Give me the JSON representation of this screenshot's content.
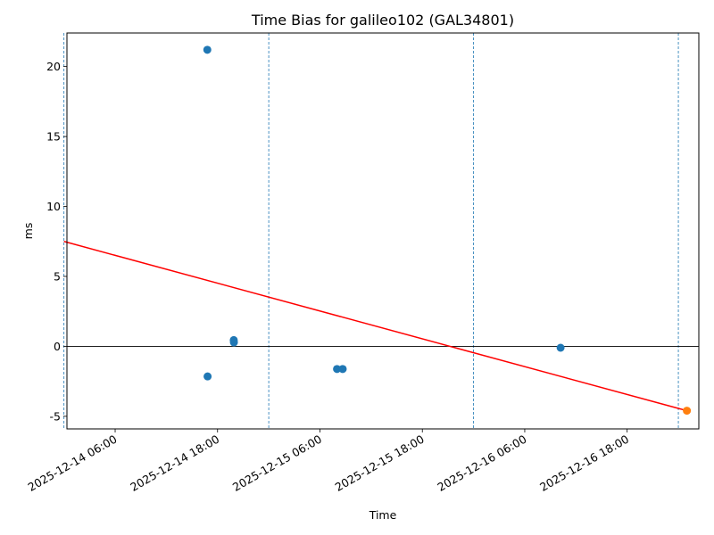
{
  "chart_data": {
    "type": "scatter",
    "title": "Time Bias for galileo102 (GAL34801)",
    "xlabel": "Time",
    "ylabel": "ms",
    "xlim": [
      "2025-12-14 00:21",
      "2025-12-17 02:24"
    ],
    "ylim": [
      -5.9,
      22.4
    ],
    "x_ticks": [
      "2025-12-14 06:00",
      "2025-12-14 18:00",
      "2025-12-15 06:00",
      "2025-12-15 18:00",
      "2025-12-16 06:00",
      "2025-12-16 18:00"
    ],
    "y_ticks": [
      -5,
      0,
      5,
      10,
      15,
      20
    ],
    "grid": false,
    "zero_line": true,
    "colors": {
      "points": "#1f77b4",
      "predicted_point": "#ff7f0e",
      "trend": "#ff0000",
      "vlines": "#1f77b4",
      "zero_line": "#000000"
    },
    "points": [
      {
        "x": "2025-12-14 16:48",
        "y": 21.2
      },
      {
        "x": "2025-12-14 16:50",
        "y": -2.15
      },
      {
        "x": "2025-12-14 19:54",
        "y": 0.45
      },
      {
        "x": "2025-12-14 19:55",
        "y": 0.28
      },
      {
        "x": "2025-12-15 08:00",
        "y": -1.62
      },
      {
        "x": "2025-12-15 08:40",
        "y": -1.62
      },
      {
        "x": "2025-12-16 10:12",
        "y": -0.1
      }
    ],
    "predicted_point": {
      "x": "2025-12-17 01:00",
      "y": -4.6
    },
    "trend_line": [
      {
        "x": "2025-12-14 00:00",
        "y": 7.5
      },
      {
        "x": "2025-12-17 01:00",
        "y": -4.6
      }
    ],
    "vertical_lines": [
      "2025-12-14 00:00",
      "2025-12-15 00:00",
      "2025-12-16 00:00",
      "2025-12-17 00:00"
    ]
  }
}
